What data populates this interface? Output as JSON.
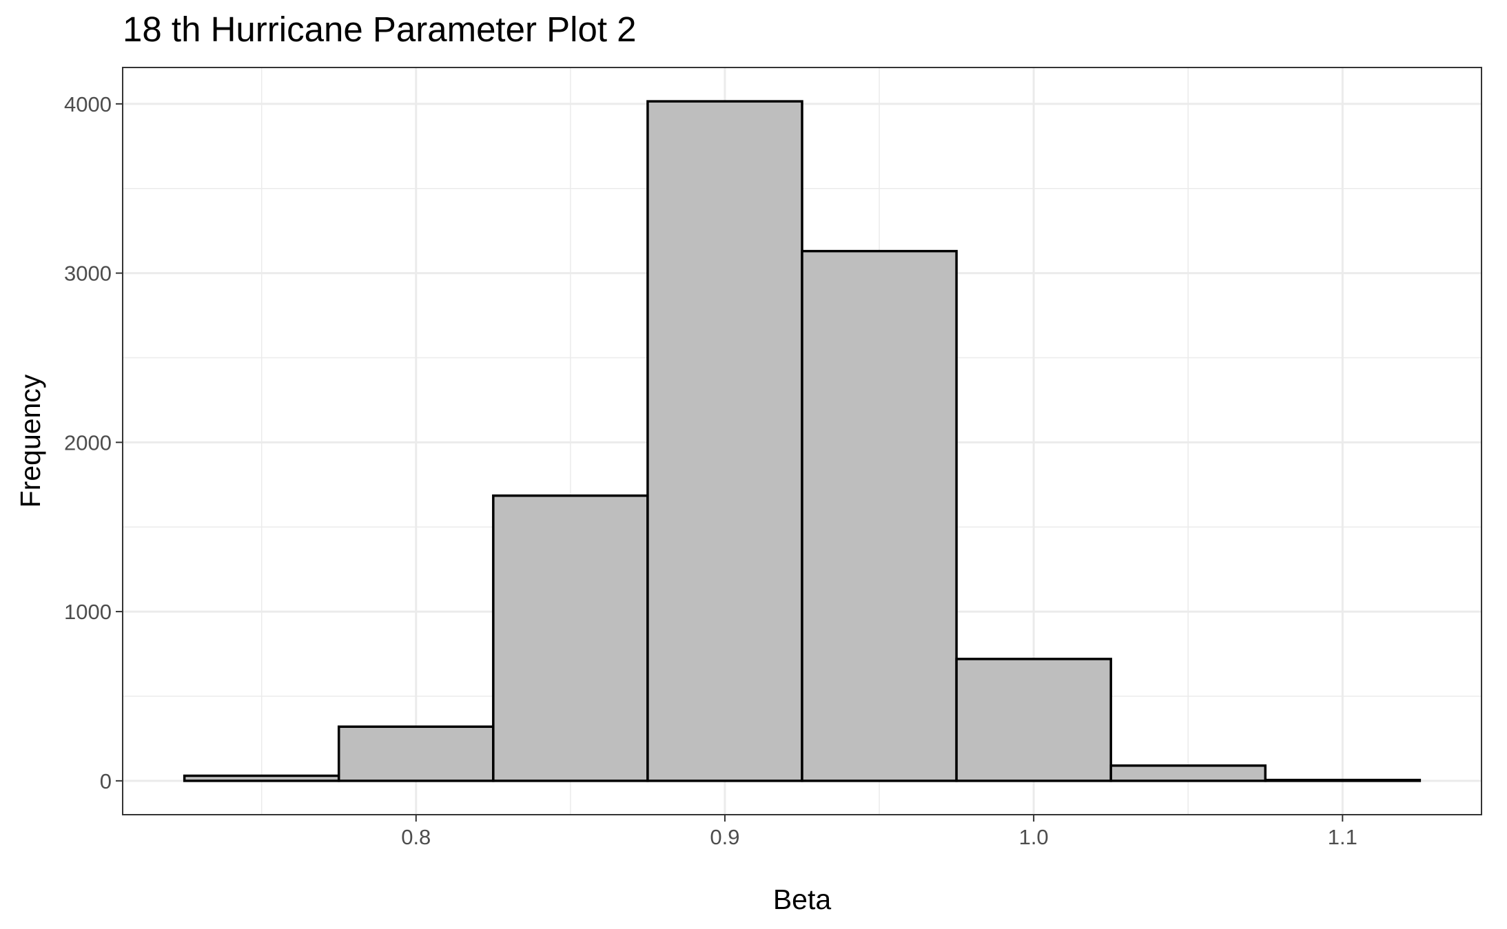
{
  "chart_data": {
    "type": "bar",
    "title": "18 th Hurricane Parameter Plot 2",
    "xlabel": "Beta",
    "ylabel": "Frequency",
    "bins": [
      {
        "x0": 0.725,
        "x1": 0.775,
        "count": 30
      },
      {
        "x0": 0.775,
        "x1": 0.825,
        "count": 320
      },
      {
        "x0": 0.825,
        "x1": 0.875,
        "count": 1685
      },
      {
        "x0": 0.875,
        "x1": 0.925,
        "count": 4015
      },
      {
        "x0": 0.925,
        "x1": 0.975,
        "count": 3130
      },
      {
        "x0": 0.975,
        "x1": 1.025,
        "count": 720
      },
      {
        "x0": 1.025,
        "x1": 1.075,
        "count": 90
      },
      {
        "x0": 1.075,
        "x1": 1.125,
        "count": 5
      }
    ],
    "xlim": [
      0.705,
      1.145
    ],
    "ylim": [
      -200,
      4215
    ],
    "x_major_ticks": [
      0.8,
      0.9,
      1.0,
      1.1
    ],
    "x_tick_labels": [
      "0.8",
      "0.9",
      "1.0",
      "1.1"
    ],
    "x_minor_ticks": [
      0.75,
      0.85,
      0.95,
      1.05
    ],
    "y_major_ticks": [
      0,
      1000,
      2000,
      3000,
      4000
    ],
    "y_tick_labels": [
      "0",
      "1000",
      "2000",
      "3000",
      "4000"
    ],
    "y_minor_ticks": [
      500,
      1500,
      2500,
      3500
    ],
    "grid": true,
    "legend": "none"
  }
}
